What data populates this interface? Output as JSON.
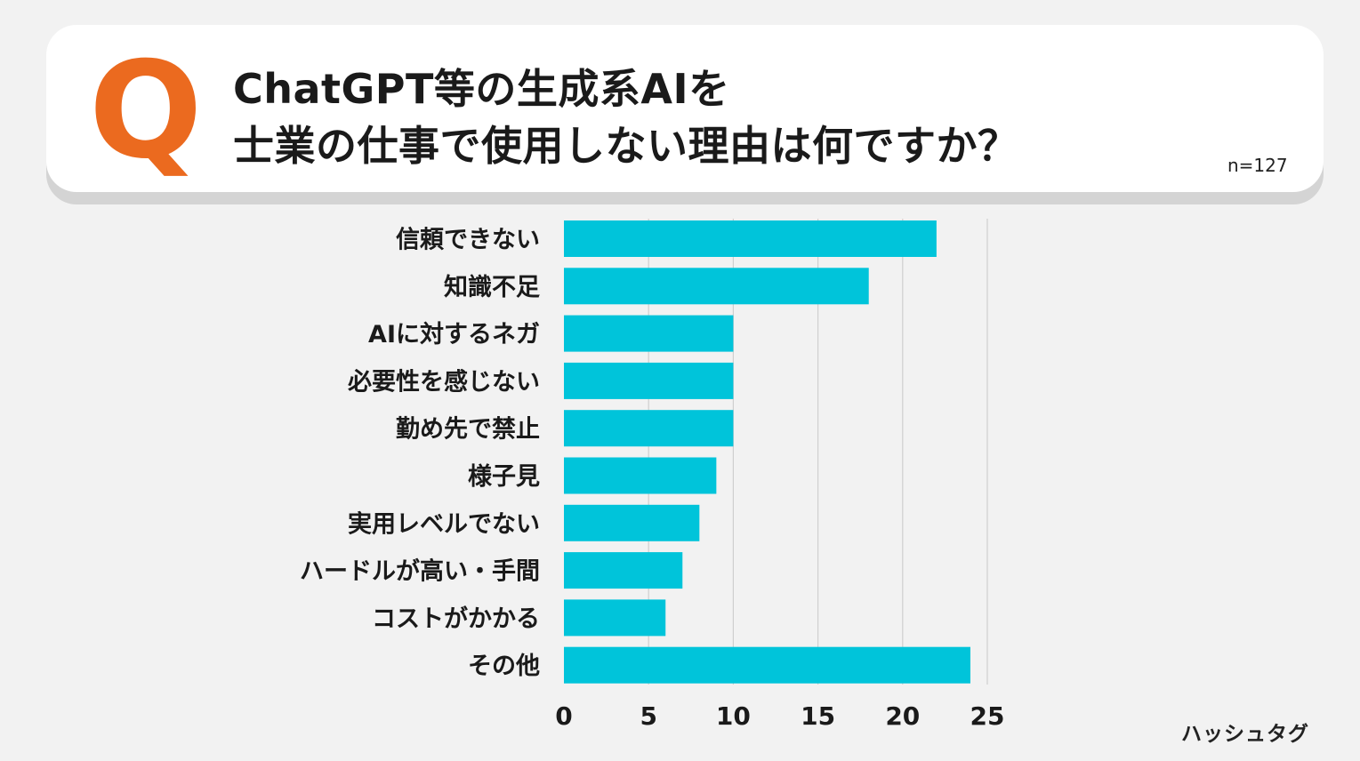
{
  "header": {
    "q_mark": "Q",
    "title_line1": "ChatGPT等の生成系AIを",
    "title_line2": "士業の仕事で使用しない理由は何ですか？",
    "sample_size": "n=127"
  },
  "brand": "ハッシュタグ",
  "colors": {
    "bar": "#00c4da",
    "accent": "#eb6a1f",
    "grid": "#cfcfcf"
  },
  "chart_data": {
    "type": "bar",
    "orientation": "horizontal",
    "categories": [
      "信頼できない",
      "知識不足",
      "AIに対するネガ",
      "必要性を感じない",
      "勤め先で禁止",
      "様子見",
      "実用レベルでない",
      "ハードルが高い・手間",
      "コストがかかる",
      "その他"
    ],
    "values": [
      22,
      18,
      10,
      10,
      10,
      9,
      8,
      7,
      6,
      24
    ],
    "xlim": [
      0,
      25
    ],
    "xticks": [
      0,
      5,
      10,
      15,
      20,
      25
    ],
    "grid": true
  }
}
